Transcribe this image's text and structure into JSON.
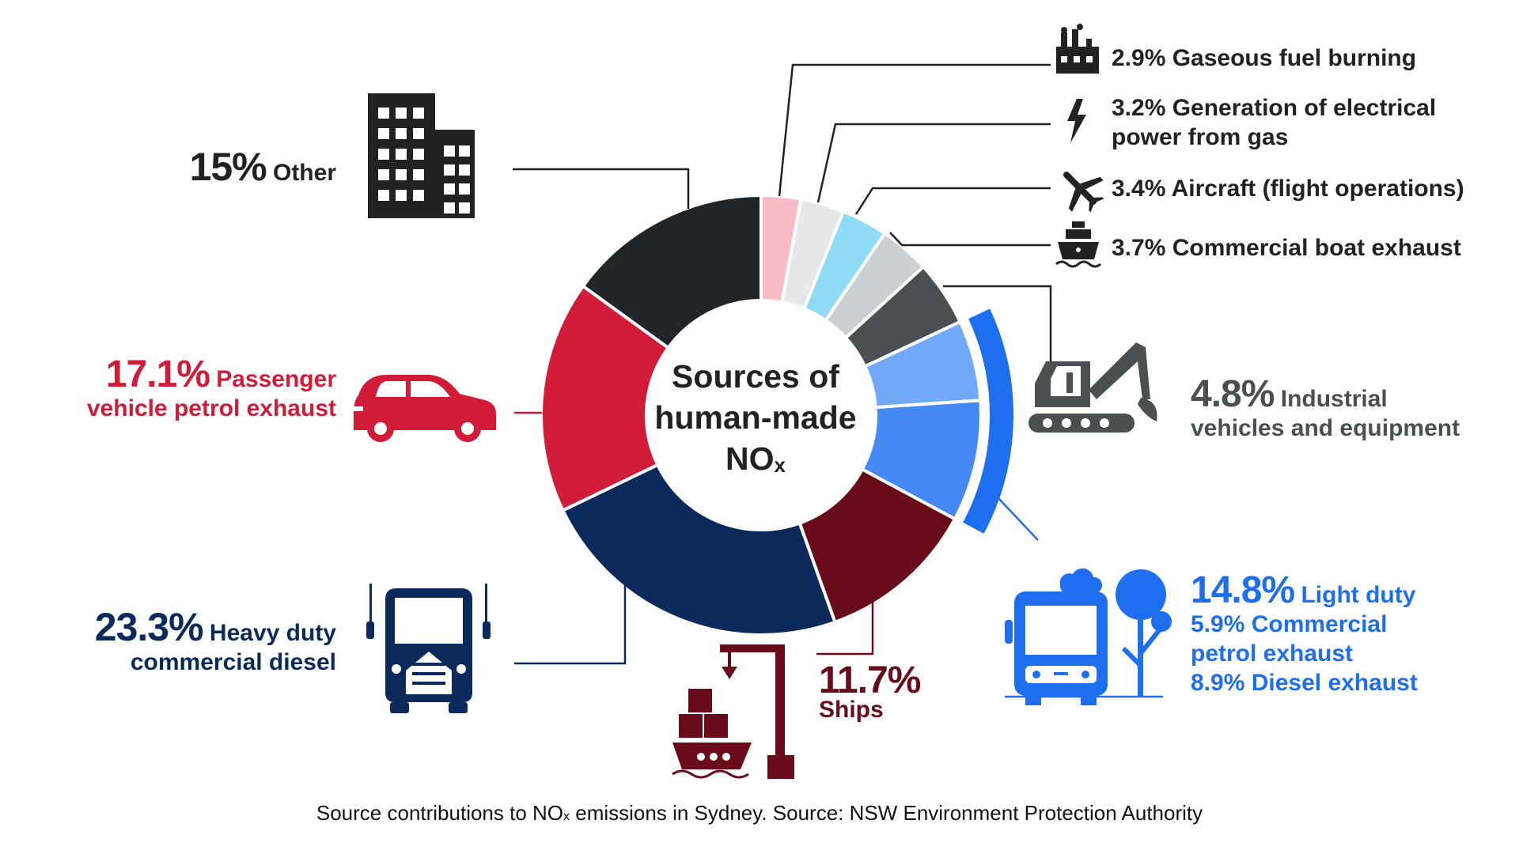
{
  "chart_data": {
    "type": "pie",
    "variant": "donut",
    "title": "Sources of human-made NOx",
    "title_parts": {
      "text": "Sources of human-made NO",
      "subscript": "x"
    },
    "slices": [
      {
        "label": "Gaseous fuel burning",
        "value": 2.9,
        "color": "#f7bcc6"
      },
      {
        "label": "Generation of electrical power from gas",
        "value": 3.2,
        "color": "#e6e7e8"
      },
      {
        "label": "Aircraft (flight operations)",
        "value": 3.4,
        "color": "#8fdcf8"
      },
      {
        "label": "Commercial boat exhaust",
        "value": 3.7,
        "color": "#cdd0d2"
      },
      {
        "label": "Industrial vehicles and equipment",
        "value": 4.8,
        "color": "#4a4f52"
      },
      {
        "label": "Light duty - Commercial petrol exhaust",
        "value": 5.9,
        "color": "#72a8f8"
      },
      {
        "label": "Light duty - Diesel exhaust",
        "value": 8.9,
        "color": "#4489f5"
      },
      {
        "label": "Ships",
        "value": 11.7,
        "color": "#6a0b1c"
      },
      {
        "label": "Heavy duty commercial diesel",
        "value": 23.3,
        "color": "#0b2a5b"
      },
      {
        "label": "Passenger vehicle petrol exhaust",
        "value": 17.1,
        "color": "#d21b38"
      },
      {
        "label": "Other",
        "value": 15.0,
        "color": "#222528"
      }
    ],
    "groups": [
      {
        "label": "Light duty",
        "value": 14.8,
        "color": "#1e6ff0",
        "members": [
          5,
          6
        ]
      }
    ]
  },
  "labels": {
    "gaseous": "2.9% Gaseous fuel burning",
    "power_line1": "3.2% Generation of electrical",
    "power_line2": "power from gas",
    "aircraft": "3.4% Aircraft (flight operations)",
    "boat": "3.7% Commercial boat exhaust",
    "industrial_pct": "4.8%",
    "industrial_line1": "Industrial",
    "industrial_line2": "vehicles and equipment",
    "light_pct": "14.8%",
    "light_name": "Light duty",
    "light_sub1": "5.9% Commercial",
    "light_sub2": "petrol exhaust",
    "light_sub3": "8.9% Diesel exhaust",
    "ships_pct": "11.7%",
    "ships_name": "Ships",
    "heavy_pct": "23.3%",
    "heavy_name": "Heavy duty",
    "heavy_line2": "commercial diesel",
    "passenger_pct": "17.1%",
    "passenger_name": "Passenger",
    "passenger_line2": "vehicle petrol exhaust",
    "other_pct": "15%",
    "other_name": "Other"
  },
  "caption": {
    "before": "Source contributions to NO",
    "sub": "x",
    "after": " emissions in Sydney. Source: NSW Environment Protection Authority"
  },
  "colors": {
    "passenger": "#d21b38",
    "heavy": "#0b2a5b",
    "ships": "#6a0b1c",
    "light": "#1e6ff0",
    "industrial": "#4a4f52",
    "dark": "#222222"
  },
  "icons": [
    "factory-icon",
    "lightning-icon",
    "airplane-icon",
    "ship-icon",
    "excavator-icon",
    "bus-tree-icon",
    "crane-ship-icon",
    "truck-icon",
    "car-icon",
    "buildings-icon"
  ]
}
